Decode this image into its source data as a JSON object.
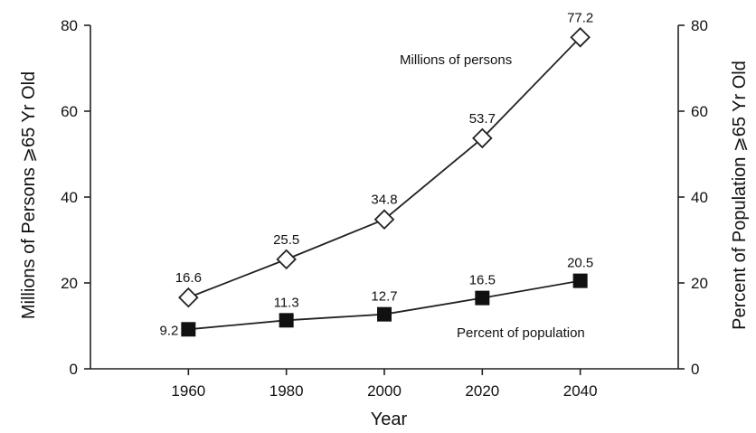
{
  "chart_data": {
    "type": "line",
    "x": [
      1960,
      1980,
      2000,
      2020,
      2040
    ],
    "xlim": [
      1940,
      2060
    ],
    "xticks": [
      1960,
      1980,
      2000,
      2020,
      2040
    ],
    "xlabel": "Year",
    "ylabel": "Millions of Persons ⩾65 Yr Old",
    "ylabel_right": "Percent of Population ⩾65 Yr Old",
    "ylim": [
      0,
      80
    ],
    "yticks": [
      0,
      20,
      40,
      60,
      80
    ],
    "ylim_right": [
      0,
      80
    ],
    "yticks_right": [
      0,
      20,
      40,
      60,
      80
    ],
    "grid": false,
    "series": [
      {
        "name": "Millions of persons",
        "marker": "open-diamond",
        "axis": "left",
        "values": [
          16.6,
          25.5,
          34.8,
          53.7,
          77.2
        ],
        "labels": [
          "16.6",
          "25.5",
          "34.8",
          "53.7",
          "77.2"
        ]
      },
      {
        "name": "Percent of population",
        "marker": "filled-square",
        "axis": "right",
        "values": [
          9.2,
          11.3,
          12.7,
          16.5,
          20.5
        ],
        "labels": [
          "9.2",
          "11.3",
          "12.7",
          "16.5",
          "20.5"
        ]
      }
    ]
  }
}
